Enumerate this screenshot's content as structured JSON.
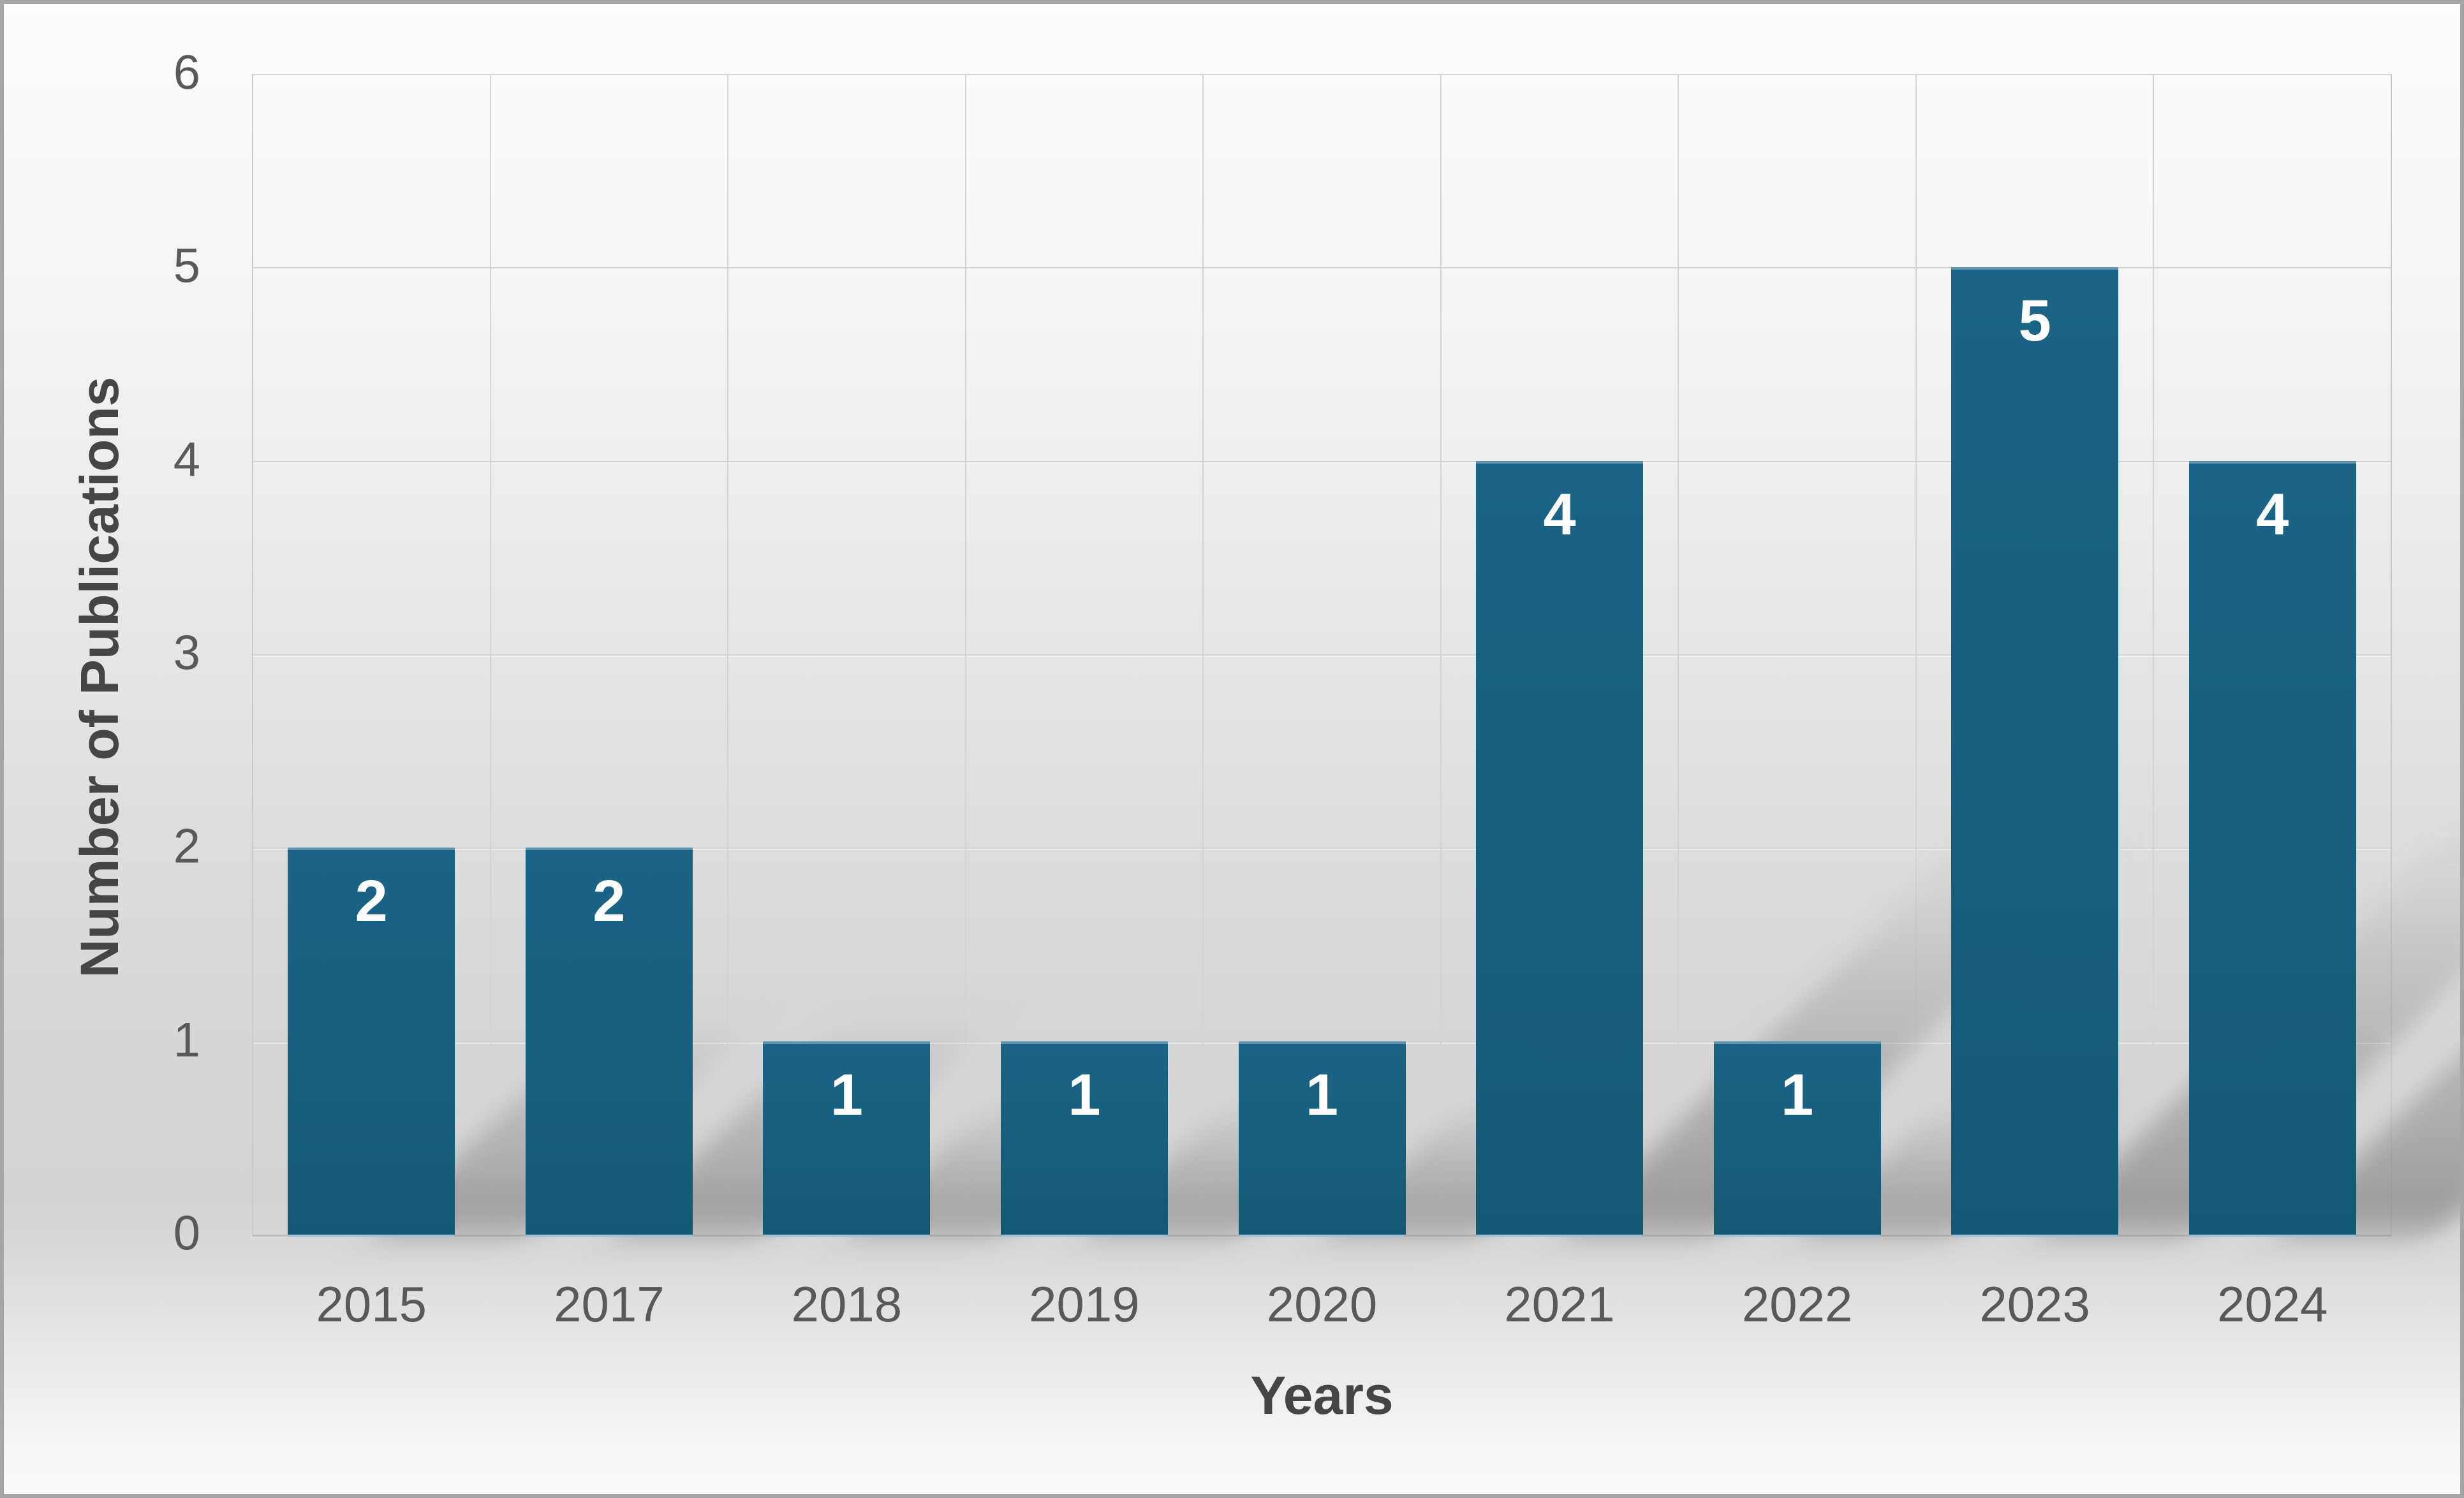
{
  "chart_data": {
    "type": "bar",
    "categories": [
      "2015",
      "2017",
      "2018",
      "2019",
      "2020",
      "2021",
      "2022",
      "2023",
      "2024"
    ],
    "values": [
      2,
      2,
      1,
      1,
      1,
      4,
      1,
      5,
      4
    ],
    "bar_labels": [
      "2",
      "2",
      "1",
      "1",
      "1",
      "4",
      "1",
      "5",
      "4"
    ],
    "title": "",
    "xlabel": "Years",
    "ylabel": "Number of Publications",
    "ylim": [
      0,
      6
    ],
    "yticks": [
      "0",
      "1",
      "2",
      "3",
      "4",
      "5",
      "6"
    ],
    "grid": "full",
    "legend": "none",
    "bar_label_position": "inside-end",
    "colors": {
      "bar": "#17607f",
      "bar_top": "#1b6486",
      "bar_bottom": "#145973",
      "bar_label": "#ffffff",
      "tick_label": "#595959",
      "axis_title": "#454545",
      "gridline": "#d4d4d4",
      "axis_line": "#bdbdbd",
      "frame_border": "#a6a6a6",
      "shadow": "#6e6e6e"
    }
  }
}
